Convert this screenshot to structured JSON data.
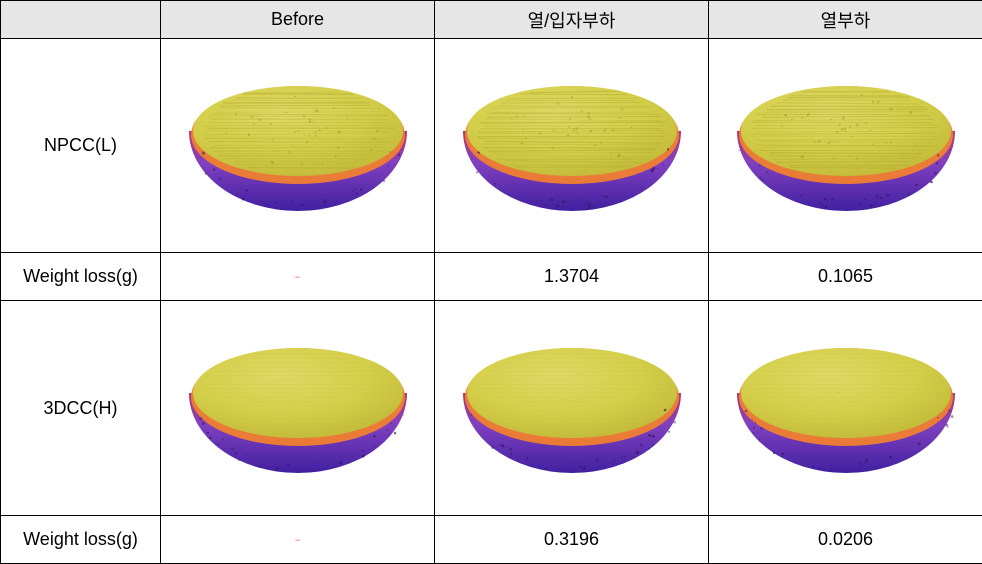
{
  "table": {
    "headers": {
      "col1": "",
      "col2": "Before",
      "col3": "열/입자부하",
      "col4": "열부하"
    },
    "rows": {
      "npcc": {
        "label": "NPCC(L)",
        "weight_label": "Weight loss(g)",
        "weight_before": "-",
        "weight_col3": "1.3704",
        "weight_col4": "0.1065",
        "texture": "rough"
      },
      "dcc": {
        "label": "3DCC(H)",
        "weight_label": "Weight loss(g)",
        "weight_before": "-",
        "weight_col3": "0.3196",
        "weight_col4": "0.0206",
        "texture": "smooth"
      }
    }
  },
  "style": {
    "header_bg": "#e6e6e6",
    "header_fontsize": 18,
    "label_fontsize": 18,
    "cell_fontsize": 18,
    "border_color": "#000000",
    "dash_color": "#ffaaaa",
    "disc": {
      "top_color": "#d4cf4a",
      "top_highlight": "#e0d865",
      "top_shadow": "#c0b838",
      "edge_top": "#f08030",
      "edge_mid": "#e03028",
      "edge_bot": "#8040c0",
      "edge_dark": "#4020a0",
      "texture_line": "#b0a830",
      "texture_dot": "#a09820"
    }
  }
}
